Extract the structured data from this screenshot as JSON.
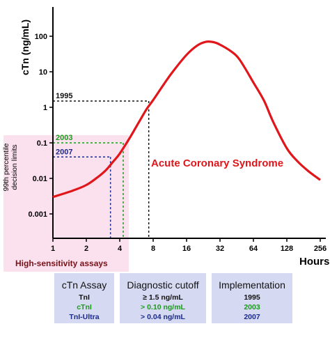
{
  "chart_data": {
    "type": "line",
    "ylabel": "cTn (ng/mL)",
    "xlabel": "Hours",
    "x_scale": "log2",
    "y_scale": "log10",
    "x_ticks": [
      1,
      2,
      4,
      8,
      16,
      32,
      64,
      128,
      256
    ],
    "y_ticks": [
      0.001,
      0.01,
      0.1,
      1,
      10,
      100
    ],
    "y_tick_labels": [
      "0.001",
      "0.01",
      "0.1",
      "1",
      "10",
      "100"
    ],
    "series": [
      {
        "name": "Acute Coronary Syndrome",
        "color": "#e0161b",
        "x": [
          1,
          1.5,
          2,
          2.5,
          3,
          3.5,
          4,
          5,
          6,
          7,
          8,
          10,
          12,
          16,
          20,
          24,
          28,
          32,
          40,
          48,
          64,
          80,
          96,
          128,
          160,
          200,
          256
        ],
        "y": [
          0.003,
          0.0045,
          0.0065,
          0.0105,
          0.017,
          0.03,
          0.05,
          0.15,
          0.4,
          0.9,
          1.6,
          4.5,
          10,
          30,
          55,
          70,
          68,
          58,
          38,
          22,
          5,
          1.5,
          0.4,
          0.07,
          0.03,
          0.016,
          0.009
        ]
      }
    ],
    "reference_lines": [
      {
        "label": "1995",
        "y": 1.5,
        "x": 7.3,
        "color": "#111111"
      },
      {
        "label": "2003",
        "y": 0.1,
        "x": 4.3,
        "color": "#1a9a1a"
      },
      {
        "label": "2007",
        "y": 0.04,
        "x": 3.3,
        "color": "#1a2a8a"
      }
    ],
    "shaded_region": {
      "label": "High-sensitivity assays",
      "side_label": [
        "99th percentile",
        "decision limits"
      ],
      "color": "#fbe1ee"
    }
  },
  "table": {
    "columns": [
      {
        "header": "cTn Assay",
        "rows": [
          "TnI",
          "cTnI",
          "TnI-Ultra"
        ]
      },
      {
        "header": "Diagnostic cutoff",
        "rows": [
          "≥ 1.5 ng/mL",
          "> 0.10 ng/mL",
          "> 0.04 ng/mL"
        ]
      },
      {
        "header": "Implementation",
        "rows": [
          "1995",
          "2003",
          "2007"
        ]
      }
    ],
    "row_colors": [
      "#111111",
      "#1a9a1a",
      "#1a2a8a"
    ]
  }
}
